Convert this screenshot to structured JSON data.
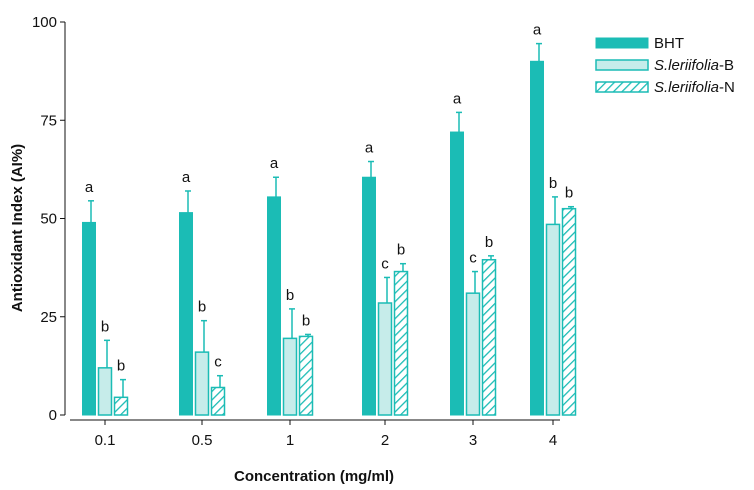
{
  "colors": {
    "teal": "#1bbcb5",
    "teal_light": "#c6ecea",
    "hatch_stroke": "#1bbcb5",
    "axis": "#111111"
  },
  "chart_data": {
    "type": "bar",
    "xlabel": "Concentration (mg/ml)",
    "ylabel": "Antioxidant Index (AI%)",
    "ylim": [
      0,
      100
    ],
    "yticks": [
      "0",
      "25",
      "50",
      "75",
      "100"
    ],
    "categories": [
      "0.1",
      "0.5",
      "1",
      "2",
      "3",
      "4"
    ],
    "legend_position": "top-right",
    "series": [
      {
        "name": "BHT",
        "name_italic": "",
        "name_suffix": "",
        "style": "solid",
        "values": [
          49,
          51.5,
          55.5,
          60.5,
          72,
          90
        ],
        "errors": [
          5.5,
          5.5,
          5,
          4,
          5,
          4.5
        ],
        "letters": [
          "a",
          "a",
          "a",
          "a",
          "a",
          "a"
        ]
      },
      {
        "name": "S.leriifolia-B",
        "name_italic": "S.leriifolia",
        "name_suffix": "-B",
        "style": "light",
        "values": [
          12,
          16,
          19.5,
          28.5,
          31,
          48.5
        ],
        "errors": [
          7,
          8,
          7.5,
          6.5,
          5.5,
          7
        ],
        "letters": [
          "b",
          "b",
          "b",
          "c",
          "c",
          "b"
        ]
      },
      {
        "name": "S.leriifolia-N",
        "name_italic": "S.leriifolia",
        "name_suffix": "-N",
        "style": "hatched",
        "values": [
          4.5,
          7,
          20,
          36.5,
          39.5,
          52.5
        ],
        "errors": [
          4.5,
          3,
          0.5,
          2,
          1,
          0.5
        ],
        "letters": [
          "b",
          "c",
          "b",
          "b",
          "b",
          "b"
        ]
      }
    ]
  }
}
